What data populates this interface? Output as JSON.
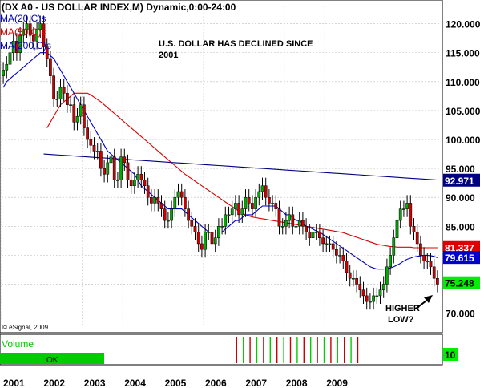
{
  "header": {
    "title": "(DX A0 - US DOLLAR INDEX,M) Dynamic,0:00-24:00",
    "ma_labels": [
      {
        "text": "MA(20,C)s",
        "color": "#0000cc"
      },
      {
        "text": "MA(50,C)s",
        "color": "#dd0000"
      },
      {
        "text": "MA(200,C)s",
        "color": "#0000aa"
      }
    ]
  },
  "annotation": {
    "line1": "U.S. DOLLAR HAS DECLINED SINCE",
    "line2": "2001",
    "higher_low_1": "HIGHER",
    "higher_low_2": "LOW?"
  },
  "copyright": "© eSignal, 2009",
  "volume_panel": {
    "label": "Volume",
    "ok_label": "OK",
    "right_value": "10"
  },
  "colors": {
    "up": "#00aa00",
    "down": "#cc0000",
    "ma20": "#0000cc",
    "ma50": "#dd0000",
    "ma200": "#000080",
    "volume_green": "#00cc00"
  },
  "chart_data": {
    "type": "candlestick",
    "y_ticks": [
      "120.000",
      "115.000",
      "110.000",
      "105.000",
      "100.000",
      "95.000",
      "90.000",
      "85.000",
      "80.000",
      "75.000",
      "70.000"
    ],
    "ylim": [
      68,
      123
    ],
    "x_ticks": [
      "2001",
      "2002",
      "2003",
      "2004",
      "2005",
      "2006",
      "2007",
      "2008",
      "2009"
    ],
    "x_start": 2001,
    "last_values": [
      {
        "label": "92.971",
        "value": 92.971,
        "bg": "#000080",
        "fg": "#ffffff"
      },
      {
        "label": "81.337",
        "value": 81.337,
        "bg": "#dd0000",
        "fg": "#ffffff"
      },
      {
        "label": "79.615",
        "value": 79.615,
        "bg": "#0000cc",
        "fg": "#ffffff"
      },
      {
        "label": "75.248",
        "value": 75.248,
        "bg": "#00ee00",
        "fg": "#000000"
      }
    ],
    "close": [
      112,
      113,
      115,
      117,
      115,
      118,
      119,
      120,
      118,
      117,
      119,
      120,
      116,
      114,
      111,
      107,
      107,
      109,
      108,
      106,
      106,
      103,
      104,
      106,
      102,
      100,
      99,
      98,
      98,
      95,
      94,
      96,
      97,
      93,
      93,
      97,
      96,
      93,
      92,
      93,
      94,
      93,
      92,
      90,
      89,
      90,
      89,
      88,
      86,
      86,
      88,
      90,
      91,
      90,
      88,
      86,
      85,
      84,
      82,
      81,
      84,
      84,
      82,
      83,
      85,
      85,
      87,
      87,
      88,
      89,
      87,
      88,
      90,
      89,
      88,
      90,
      91,
      92,
      90,
      89,
      89,
      88,
      85,
      85,
      86,
      87,
      85,
      85,
      86,
      85,
      84,
      83,
      84,
      84,
      83,
      82,
      82,
      82,
      81,
      80,
      80,
      79,
      77,
      76,
      76,
      75,
      74,
      73,
      72,
      72,
      73,
      73,
      74,
      75,
      78,
      80,
      83,
      86,
      88,
      88,
      89,
      85,
      84,
      82,
      80,
      79,
      79,
      78,
      76,
      75
    ],
    "ma20": [
      109,
      110,
      110.5,
      111,
      111.5,
      112,
      112.5,
      113,
      113.5,
      114,
      114.5,
      115,
      115,
      115,
      114.5,
      114,
      113,
      112,
      111,
      110,
      109,
      108,
      107,
      106,
      105,
      104,
      103,
      102,
      101,
      100,
      99,
      98,
      97.5,
      97,
      96.5,
      96,
      95.5,
      95,
      94.5,
      94,
      93,
      92,
      91.5,
      91,
      90.5,
      90,
      89.5,
      89,
      88.5,
      88,
      88,
      88,
      88,
      88,
      87.5,
      87,
      86.5,
      86,
      85.5,
      85,
      84.5,
      84,
      84,
      84,
      84,
      84,
      84.5,
      85,
      85.5,
      86,
      86,
      86.5,
      87,
      87,
      87,
      87.5,
      88,
      88.5,
      88.5,
      88.5,
      88.5,
      88.5,
      88,
      87.5,
      87,
      87,
      86.5,
      86,
      86,
      85.5,
      85,
      84.8,
      84.5,
      84.2,
      84,
      83.6,
      83.2,
      82.8,
      82.4,
      82,
      81.6,
      81.2,
      80.8,
      80.4,
      80,
      79.6,
      79.2,
      78.8,
      78.4,
      78,
      77.8,
      77.6,
      77.6,
      77.6,
      77.7,
      77.8,
      78,
      78.3,
      78.6,
      79,
      79.3,
      79.5,
      79.7,
      79.8,
      79.9,
      80,
      80,
      79.9,
      79.8,
      79.6
    ],
    "ma50": [
      null,
      null,
      null,
      null,
      null,
      null,
      null,
      null,
      null,
      null,
      null,
      null,
      null,
      102,
      103,
      104,
      105,
      106,
      106.5,
      107,
      107.5,
      108,
      108,
      108,
      108,
      108,
      107.7,
      107.3,
      106.9,
      106.5,
      106,
      105.5,
      105,
      104.5,
      104,
      103.5,
      103,
      102.5,
      102,
      101.5,
      101,
      100.5,
      100,
      99.5,
      99,
      98.5,
      98,
      97.5,
      97,
      96.5,
      96,
      95.5,
      95,
      94.5,
      94,
      93.6,
      93.2,
      92.8,
      92.4,
      92,
      91.6,
      91.2,
      90.8,
      90.4,
      90,
      89.6,
      89.2,
      88.8,
      88.4,
      88,
      87.6,
      87.3,
      87,
      86.8,
      86.6,
      86.5,
      86.4,
      86.3,
      86.2,
      86.1,
      86,
      85.9,
      85.8,
      85.7,
      85.6,
      85.5,
      85.4,
      85.3,
      85.2,
      85.1,
      85,
      84.9,
      84.8,
      84.7,
      84.6,
      84.5,
      84.4,
      84.3,
      84.2,
      84.1,
      84,
      83.9,
      83.7,
      83.5,
      83.3,
      83.1,
      82.9,
      82.7,
      82.5,
      82.3,
      82.1,
      81.9,
      81.8,
      81.7,
      81.6,
      81.5,
      81.5,
      81.4,
      81.4,
      81.4,
      81.4,
      81.4,
      81.3,
      81.3,
      81.3,
      81.3,
      81.3,
      81.3,
      81.3,
      81.3
    ],
    "ma200_from_index": 12,
    "ma200": [
      97.5,
      97.4,
      97.3,
      97.2,
      97.1,
      97,
      96.9,
      96.8,
      96.7,
      96.6,
      96.5,
      96.4,
      96.3,
      96.2,
      96.1,
      96,
      95.9,
      95.8,
      95.7,
      95.6,
      95.5,
      95.4,
      95.3,
      95.2,
      95.1,
      95,
      94.9,
      94.8,
      94.7,
      94.6,
      94.5,
      94.4,
      94.3,
      94.2,
      94.1,
      94,
      93.9,
      93.8,
      93.7,
      93.6,
      93.5,
      93.4,
      93.3,
      93.2,
      93.1,
      93
    ]
  }
}
